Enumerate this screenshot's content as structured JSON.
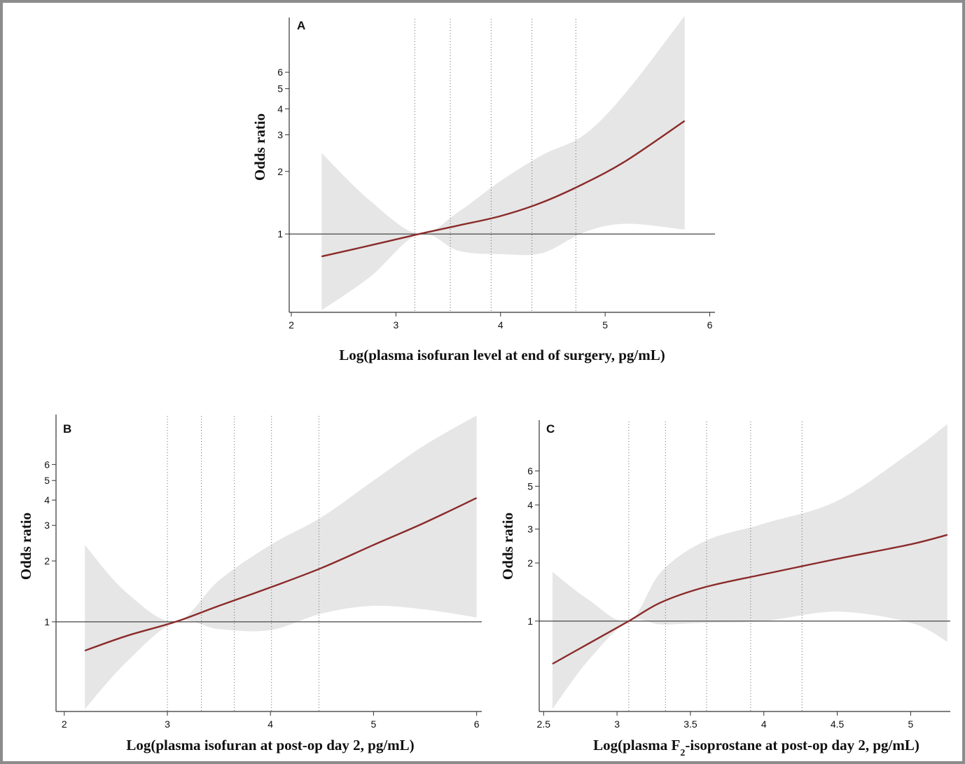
{
  "colors": {
    "curve": "#8b2a2a",
    "band": "#e6e6e6",
    "reference_line": "#555555",
    "axis": "#333333",
    "knot_line": "#666666",
    "frame": "#8c8c8c"
  },
  "chart_data": [
    {
      "panel": "A",
      "type": "line",
      "xlabel": "Log(plasma isofuran level at end of surgery, pg/mL)",
      "ylabel": "Odds ratio",
      "xlim": [
        1.98,
        6.05
      ],
      "ylim": [
        0.42,
        11.0
      ],
      "y_scale": "log",
      "x_ticks": [
        2,
        3,
        4,
        5,
        6
      ],
      "y_ticks": [
        1,
        2,
        3,
        4,
        5,
        6
      ],
      "reference_y": 1,
      "knots": [
        3.18,
        3.52,
        3.91,
        4.3,
        4.72
      ],
      "series": [
        {
          "x": [
            2.29,
            2.75,
            3.22,
            3.6,
            4.0,
            4.4,
            4.8,
            5.2,
            5.76
          ],
          "y": [
            0.78,
            0.88,
            1.0,
            1.1,
            1.22,
            1.42,
            1.75,
            2.25,
            3.5
          ],
          "lower": [
            0.43,
            0.62,
            1.0,
            0.83,
            0.8,
            0.81,
            1.02,
            1.12,
            1.05
          ],
          "upper": [
            2.45,
            1.45,
            1.0,
            1.28,
            1.8,
            2.4,
            3.0,
            4.8,
            11.2
          ]
        }
      ]
    },
    {
      "panel": "B",
      "type": "line",
      "xlabel": "Log(plasma isofuran at post-op day 2, pg/mL)",
      "ylabel": "Odds ratio",
      "xlim": [
        1.92,
        6.05
      ],
      "ylim": [
        0.36,
        10.6
      ],
      "y_scale": "log",
      "x_ticks": [
        2,
        3,
        4,
        5,
        6
      ],
      "y_ticks": [
        1,
        2,
        3,
        4,
        5,
        6
      ],
      "reference_y": 1,
      "knots": [
        3.0,
        3.33,
        3.65,
        4.01,
        4.47
      ],
      "series": [
        {
          "x": [
            2.2,
            2.6,
            3.08,
            3.5,
            4.0,
            4.5,
            5.0,
            5.5,
            6.0
          ],
          "y": [
            0.72,
            0.85,
            1.0,
            1.2,
            1.48,
            1.85,
            2.4,
            3.1,
            4.1
          ],
          "lower": [
            0.37,
            0.63,
            1.0,
            0.92,
            0.91,
            1.1,
            1.2,
            1.15,
            1.05
          ],
          "upper": [
            2.4,
            1.4,
            1.0,
            1.6,
            2.4,
            3.3,
            5.0,
            7.5,
            10.5
          ]
        }
      ]
    },
    {
      "panel": "C",
      "type": "line",
      "xlabel": "Log(plasma F₂-isoprostane  at post-op day 2, pg/mL)",
      "ylabel": "Odds ratio",
      "xlim": [
        2.47,
        5.27
      ],
      "ylim": [
        0.34,
        11.0
      ],
      "y_scale": "log",
      "x_ticks": [
        2.5,
        3,
        3.5,
        4,
        4.5,
        5
      ],
      "x_tick_labels": [
        "2.5",
        "3",
        "3.5",
        "4",
        "4.5",
        "5"
      ],
      "y_ticks": [
        1,
        2,
        3,
        4,
        5,
        6
      ],
      "reference_y": 1,
      "knots": [
        3.08,
        3.33,
        3.61,
        3.91,
        4.26
      ],
      "series": [
        {
          "x": [
            2.56,
            2.8,
            3.08,
            3.3,
            3.6,
            4.0,
            4.5,
            5.0,
            5.25
          ],
          "y": [
            0.6,
            0.76,
            1.0,
            1.25,
            1.5,
            1.75,
            2.1,
            2.5,
            2.8
          ],
          "lower": [
            0.35,
            0.62,
            1.0,
            0.96,
            0.98,
            1.0,
            1.12,
            0.98,
            0.78
          ],
          "upper": [
            1.8,
            1.3,
            1.0,
            1.8,
            2.6,
            3.2,
            4.2,
            7.5,
            10.5
          ]
        }
      ]
    }
  ]
}
